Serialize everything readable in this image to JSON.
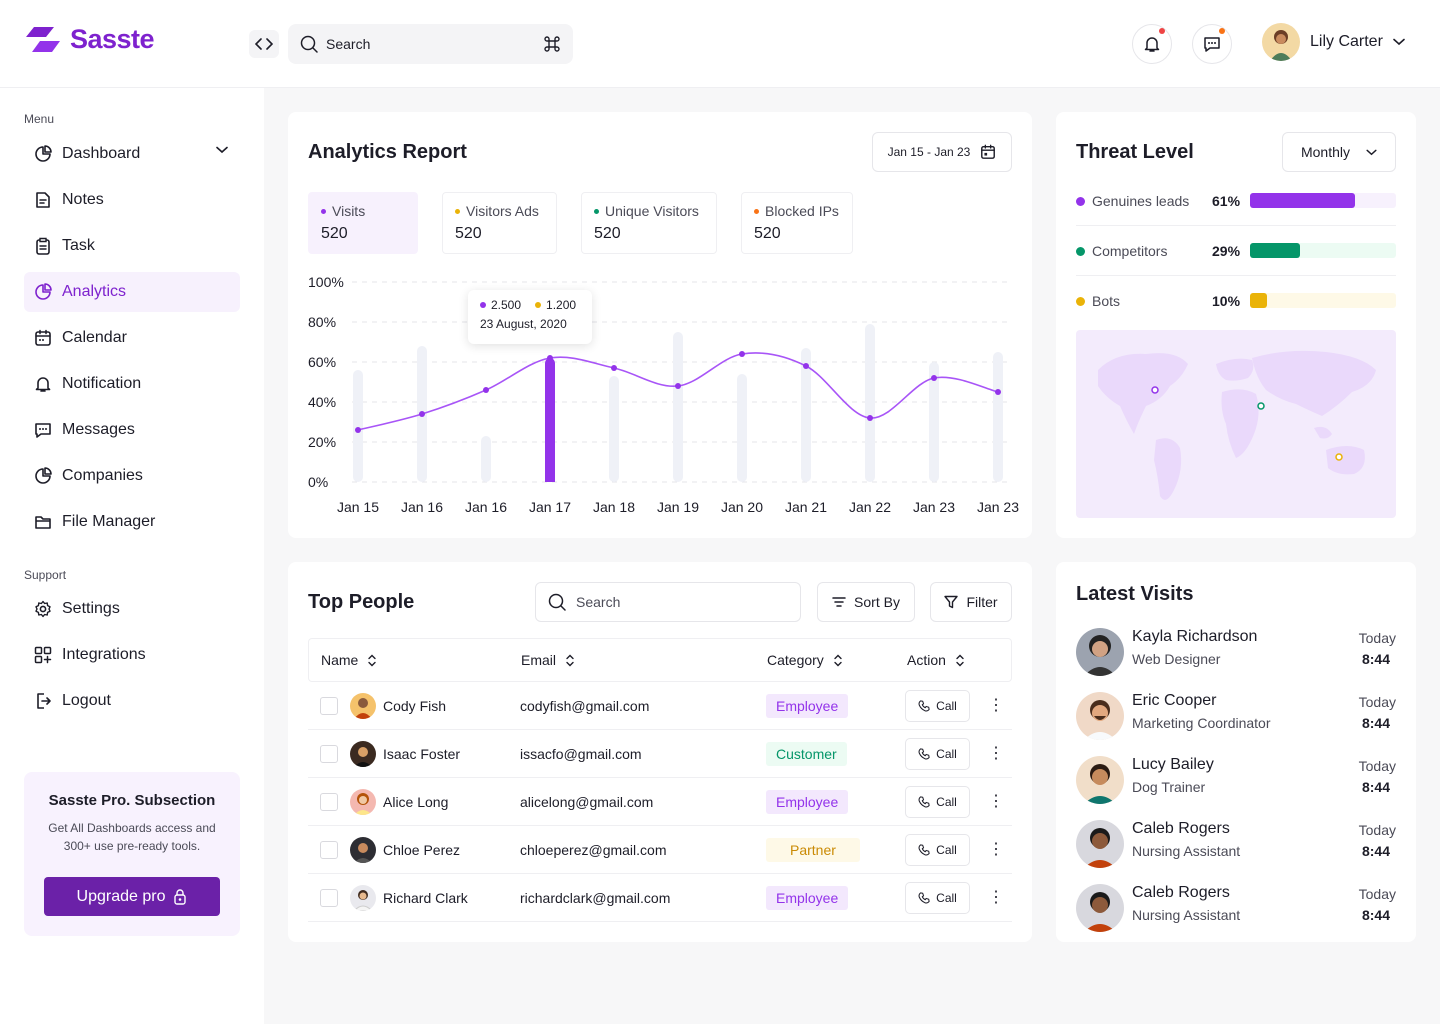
{
  "app": {
    "name": "Sasste",
    "brand_color": "#7e22ce"
  },
  "header": {
    "search_placeholder": "Search",
    "shortcut_icon": "command-icon",
    "user_name": "Lily Carter",
    "notification_dot_color": "#ef4444",
    "message_dot_color": "#f97316"
  },
  "sidebar": {
    "menu_label": "Menu",
    "menu_items": [
      {
        "label": "Dashboard",
        "icon": "pie-chart-icon"
      },
      {
        "label": "Notes",
        "icon": "notes-icon"
      },
      {
        "label": "Task",
        "icon": "clipboard-icon"
      },
      {
        "label": "Analytics",
        "icon": "analytics-icon",
        "active": true
      },
      {
        "label": "Calendar",
        "icon": "calendar-icon"
      },
      {
        "label": "Notification",
        "icon": "bell-icon"
      },
      {
        "label": "Messages",
        "icon": "chat-icon"
      },
      {
        "label": "Companies",
        "icon": "pie-chart-icon"
      },
      {
        "label": "File Manager",
        "icon": "folder-icon"
      }
    ],
    "support_label": "Support",
    "support_items": [
      {
        "label": "Settings",
        "icon": "settings-icon"
      },
      {
        "label": "Integrations",
        "icon": "grid-plus-icon"
      },
      {
        "label": "Logout",
        "icon": "logout-icon"
      }
    ],
    "promo": {
      "title": "Sasste Pro. Subsection",
      "text": "Get All Dashboards access and 300+ use pre-ready tools.",
      "button": "Upgrade pro"
    }
  },
  "analytics": {
    "title": "Analytics Report",
    "date_range": "Jan 15 - Jan 23",
    "stats": [
      {
        "label": "Visits",
        "value": "520",
        "color": "#9333ea"
      },
      {
        "label": "Visitors Ads",
        "value": "520",
        "color": "#eab308"
      },
      {
        "label": "Unique Visitors",
        "value": "520",
        "color": "#059669"
      },
      {
        "label": "Blocked IPs",
        "value": "520",
        "color": "#f97316"
      }
    ],
    "tooltip": {
      "value_a": "2.500",
      "value_b": "1.200",
      "date": "23 August, 2020",
      "color_a": "#9333ea",
      "color_b": "#eab308"
    }
  },
  "chart_data": {
    "type": "bar",
    "categories": [
      "Jan 15",
      "Jan 16",
      "Jan 16",
      "Jan 17",
      "Jan 18",
      "Jan 19",
      "Jan 20",
      "Jan 21",
      "Jan 22",
      "Jan 23",
      "Jan 23"
    ],
    "y_tick_labels": [
      "0%",
      "20%",
      "40%",
      "60%",
      "80%",
      "100%"
    ],
    "ylim": [
      0,
      100
    ],
    "series": [
      {
        "type": "bar",
        "values": [
          56,
          68,
          23,
          62,
          53,
          75,
          54,
          67,
          79,
          60,
          65
        ],
        "highlight_index": 3,
        "color": "#eff1f7",
        "highlight_color": "#9333ea"
      },
      {
        "type": "line",
        "values": [
          26,
          34,
          46,
          62,
          57,
          48,
          64,
          58,
          32,
          52,
          45
        ],
        "color": "#a855f7"
      }
    ]
  },
  "threat": {
    "title": "Threat Level",
    "period": "Monthly",
    "rows": [
      {
        "label": "Genuines leads",
        "pct": "61%",
        "value": 61,
        "color": "#9333ea",
        "track": "#f7f1fd"
      },
      {
        "label": "Competitors",
        "pct": "29%",
        "value": 29,
        "color": "#059669",
        "track": "#ecfbf3"
      },
      {
        "label": "Bots",
        "pct": "10%",
        "value": 10,
        "color": "#eab308",
        "track": "#fef9e7"
      }
    ]
  },
  "people": {
    "title": "Top People",
    "search_placeholder": "Search",
    "sort_label": "Sort By",
    "filter_label": "Filter",
    "columns": [
      "Name",
      "Email",
      "Category",
      "Action"
    ],
    "call_label": "Call",
    "rows": [
      {
        "name": "Cody Fish",
        "email": "codyfish@gmail.com",
        "category": "Employee",
        "avatar_bg": "#f5c26b",
        "badge_bg": "#f3e8fd",
        "badge_fg": "#9333ea"
      },
      {
        "name": "Isaac Foster",
        "email": "issacfo@gmail.com",
        "category": "Customer",
        "avatar_bg": "#3b2a20",
        "badge_bg": "#ecfbf3",
        "badge_fg": "#059669"
      },
      {
        "name": "Alice Long",
        "email": "alicelong@gmail.com",
        "category": "Employee",
        "avatar_bg": "#f4b8b0",
        "badge_bg": "#f3e8fd",
        "badge_fg": "#9333ea"
      },
      {
        "name": "Chloe Perez",
        "email": "chloeperez@gmail.com",
        "category": "Partner",
        "avatar_bg": "#2d2d33",
        "badge_bg": "#fef9e7",
        "badge_fg": "#ca8a04"
      },
      {
        "name": "Richard Clark",
        "email": "richardclark@gmail.com",
        "category": "Employee",
        "avatar_bg": "#e9e9ee",
        "badge_bg": "#f3e8fd",
        "badge_fg": "#9333ea"
      }
    ]
  },
  "visits": {
    "title": "Latest Visits",
    "items": [
      {
        "name": "Kayla Richardson",
        "role": "Web Designer",
        "day": "Today",
        "time": "8:44",
        "avatar_bg": "#9ca3af"
      },
      {
        "name": "Eric Cooper",
        "role": "Marketing Coordinator",
        "day": "Today",
        "time": "8:44",
        "avatar_bg": "#f0d9c7"
      },
      {
        "name": "Lucy Bailey",
        "role": "Dog Trainer",
        "day": "Today",
        "time": "8:44",
        "avatar_bg": "#f1dec9"
      },
      {
        "name": "Caleb Rogers",
        "role": "Nursing Assistant",
        "day": "Today",
        "time": "8:44",
        "avatar_bg": "#d8d8de"
      },
      {
        "name": "Caleb Rogers",
        "role": "Nursing Assistant",
        "day": "Today",
        "time": "8:44",
        "avatar_bg": "#d8d8de"
      }
    ]
  }
}
